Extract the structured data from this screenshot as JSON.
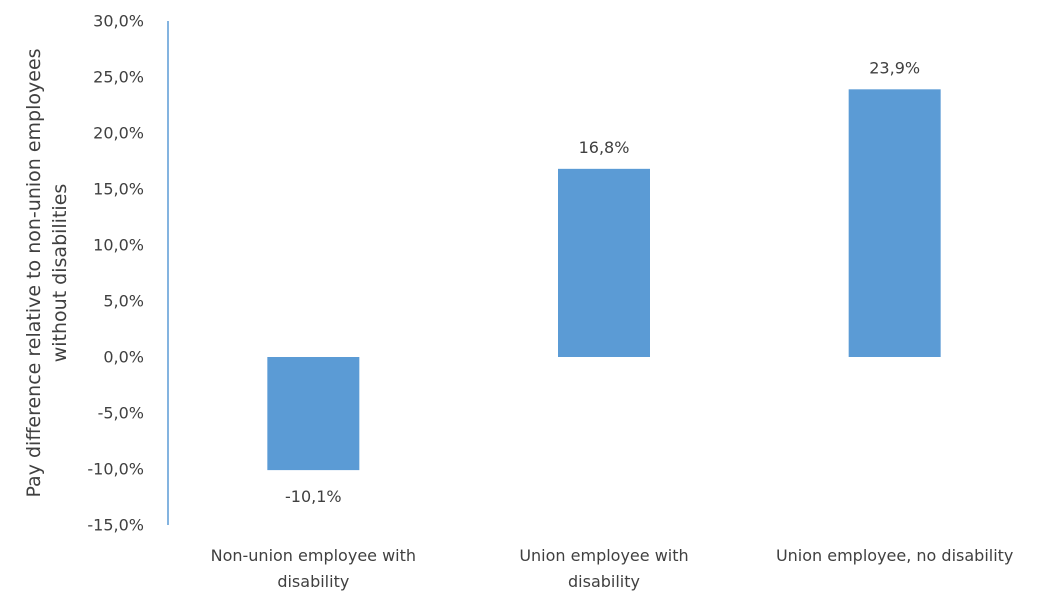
{
  "chart_data": {
    "type": "bar",
    "categories": [
      [
        "Non-union employee with",
        "disability"
      ],
      [
        "Union employee with",
        "disability"
      ],
      [
        "Union employee, no disability"
      ]
    ],
    "values": [
      -10.1,
      16.8,
      23.9
    ],
    "data_labels": [
      "-10,1%",
      "16,8%",
      "23,9%"
    ],
    "ylabel": [
      "Pay difference relative to non-union employees",
      "without disabilities"
    ],
    "ylim": [
      -15,
      30
    ],
    "ytick_step": 5,
    "ytick_labels": [
      "30,0%",
      "25,0%",
      "20,0%",
      "15,0%",
      "10,0%",
      "5,0%",
      "0,0%",
      "-5,0%",
      "-10,0%",
      "-15,0%"
    ],
    "grid": false,
    "legend": "none",
    "bar_color": "#5b9bd5",
    "axis_color": "#5b9bd5"
  }
}
